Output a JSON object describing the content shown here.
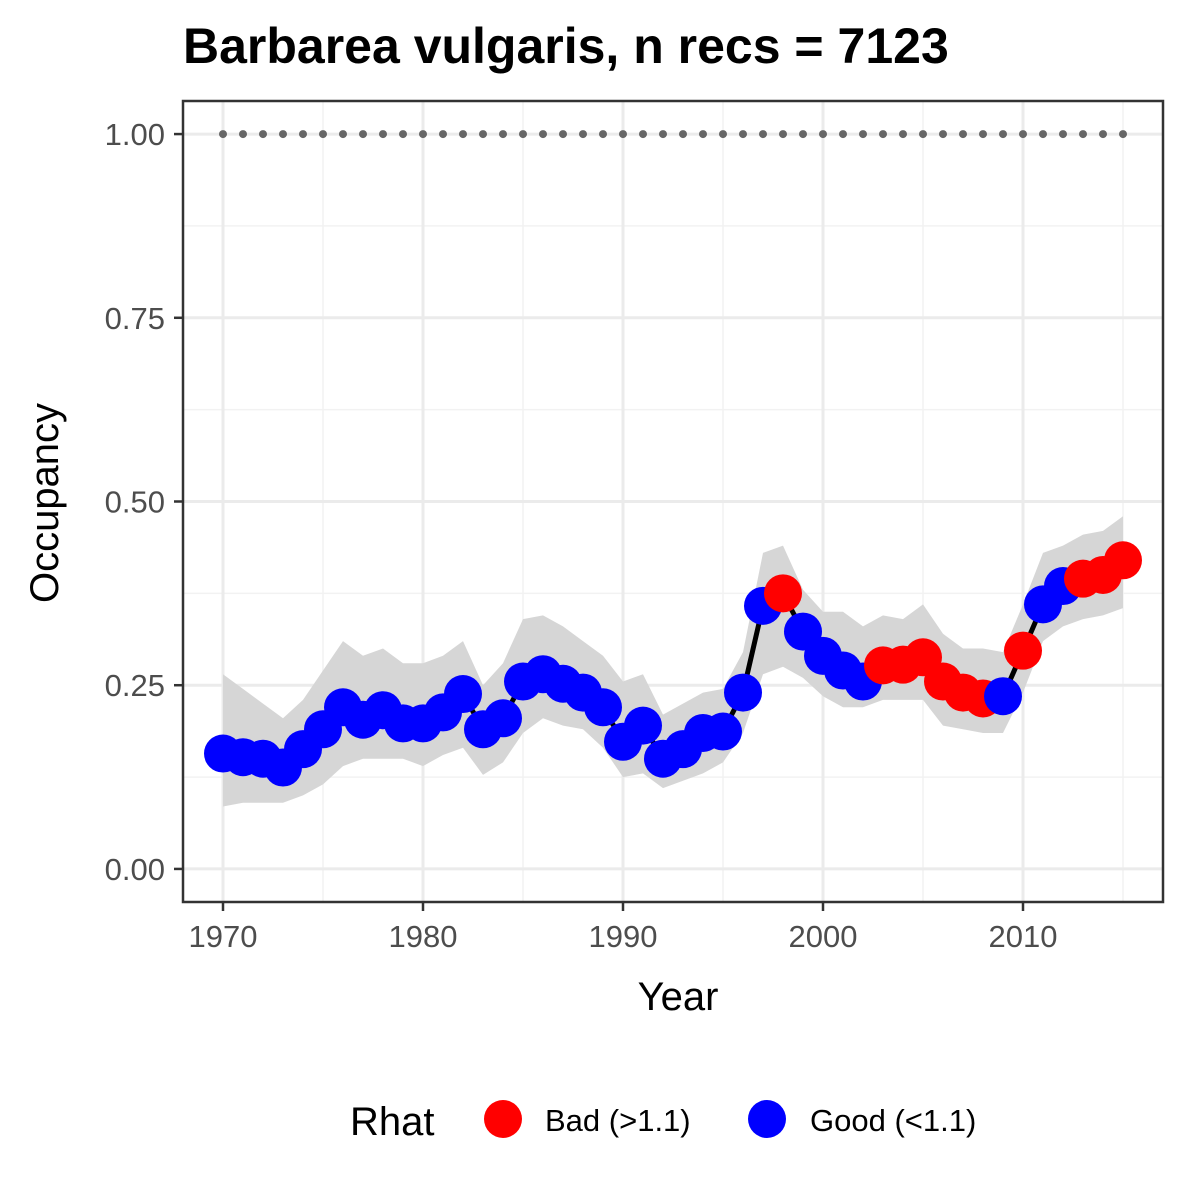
{
  "chart_data": {
    "type": "line",
    "title": "Barbarea vulgaris, n recs = 7123",
    "xlabel": "Year",
    "ylabel": "Occupancy",
    "xlim": [
      1968,
      2017
    ],
    "ylim": [
      -0.045,
      1.045
    ],
    "x_ticks": [
      1970,
      1980,
      1990,
      2000,
      2010
    ],
    "x_tick_labels": [
      "1970",
      "1980",
      "1990",
      "2000",
      "2010"
    ],
    "y_ticks": [
      0,
      0.25,
      0.5,
      0.75,
      1.0
    ],
    "y_tick_labels": [
      "0.00",
      "0.25",
      "0.50",
      "0.75",
      "1.00"
    ],
    "grid": true,
    "legend": {
      "title": "Rhat",
      "placement": "bottom",
      "entries": [
        {
          "label": "Bad (>1.1)",
          "color": "#ff0000"
        },
        {
          "label": "Good (<1.1)",
          "color": "#0000ff"
        }
      ]
    },
    "colors": {
      "bad": "#ff0000",
      "good": "#0000ff",
      "line": "#000000",
      "ribbon": "#d6d6d6",
      "reference": "#666666"
    },
    "reference_line": {
      "y": 1.0,
      "style": "dotted"
    },
    "x": [
      1970,
      1971,
      1972,
      1973,
      1974,
      1975,
      1976,
      1977,
      1978,
      1979,
      1980,
      1981,
      1982,
      1983,
      1984,
      1985,
      1986,
      1987,
      1988,
      1989,
      1990,
      1991,
      1992,
      1993,
      1994,
      1995,
      1996,
      1997,
      1998,
      1999,
      2000,
      2001,
      2002,
      2003,
      2004,
      2005,
      2006,
      2007,
      2008,
      2009,
      2010,
      2011,
      2012,
      2013,
      2014,
      2015
    ],
    "series": [
      {
        "values": [
          0.157,
          0.152,
          0.15,
          0.138,
          0.163,
          0.19,
          0.22,
          0.203,
          0.216,
          0.198,
          0.198,
          0.213,
          0.238,
          0.19,
          0.205,
          0.255,
          0.265,
          0.252,
          0.24,
          0.22,
          0.173,
          0.195,
          0.15,
          0.163,
          0.185,
          0.187,
          0.24,
          0.358,
          0.375,
          0.323,
          0.29,
          0.27,
          0.255,
          0.277,
          0.278,
          0.288,
          0.255,
          0.24,
          0.232,
          0.235,
          0.297,
          0.36,
          0.385,
          0.395,
          0.4,
          0.42
        ],
        "rhat": [
          "Good",
          "Good",
          "Good",
          "Good",
          "Good",
          "Good",
          "Good",
          "Good",
          "Good",
          "Good",
          "Good",
          "Good",
          "Good",
          "Good",
          "Good",
          "Good",
          "Good",
          "Good",
          "Good",
          "Good",
          "Good",
          "Good",
          "Good",
          "Good",
          "Good",
          "Good",
          "Good",
          "Good",
          "Bad",
          "Good",
          "Good",
          "Good",
          "Good",
          "Bad",
          "Bad",
          "Bad",
          "Bad",
          "Bad",
          "Bad",
          "Good",
          "Bad",
          "Good",
          "Good",
          "Bad",
          "Bad",
          "Bad"
        ],
        "lower": [
          0.085,
          0.09,
          0.09,
          0.09,
          0.1,
          0.115,
          0.14,
          0.15,
          0.15,
          0.15,
          0.14,
          0.155,
          0.165,
          0.128,
          0.145,
          0.185,
          0.205,
          0.195,
          0.19,
          0.165,
          0.125,
          0.13,
          0.11,
          0.12,
          0.13,
          0.145,
          0.185,
          0.265,
          0.275,
          0.26,
          0.235,
          0.22,
          0.22,
          0.23,
          0.23,
          0.23,
          0.195,
          0.19,
          0.185,
          0.185,
          0.24,
          0.31,
          0.33,
          0.34,
          0.345,
          0.355
        ],
        "upper": [
          0.265,
          0.245,
          0.225,
          0.205,
          0.23,
          0.27,
          0.31,
          0.29,
          0.3,
          0.28,
          0.28,
          0.29,
          0.31,
          0.25,
          0.28,
          0.34,
          0.345,
          0.33,
          0.31,
          0.29,
          0.255,
          0.265,
          0.21,
          0.225,
          0.24,
          0.245,
          0.295,
          0.43,
          0.44,
          0.38,
          0.35,
          0.35,
          0.33,
          0.345,
          0.34,
          0.36,
          0.32,
          0.3,
          0.3,
          0.295,
          0.36,
          0.43,
          0.44,
          0.455,
          0.46,
          0.48
        ]
      }
    ]
  }
}
